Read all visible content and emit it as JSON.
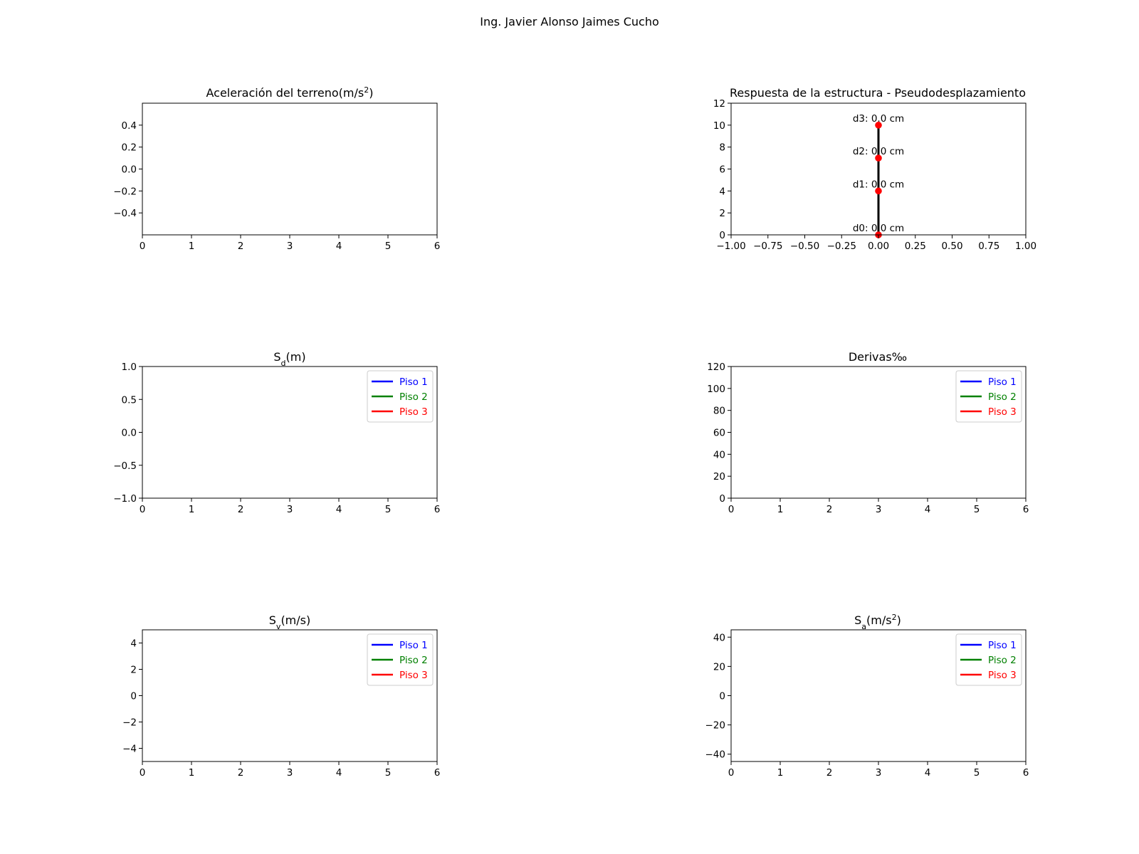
{
  "figure": {
    "suptitle": "Ing. Javier Alonso Jaimes Cucho"
  },
  "chart_data": [
    {
      "id": "acc",
      "type": "line",
      "title": "Aceleración del terreno(m/s",
      "title_sup": "2",
      "title_after": ")",
      "xlim": [
        0,
        6
      ],
      "ylim": [
        -0.6,
        0.6
      ],
      "xticks": [
        0,
        1,
        2,
        3,
        4,
        5,
        6
      ],
      "xtick_labels": [
        "0",
        "1",
        "2",
        "3",
        "4",
        "5",
        "6"
      ],
      "yticks": [
        -0.4,
        -0.2,
        0.0,
        0.2,
        0.4
      ],
      "ytick_labels": [
        "−0.4",
        "−0.2",
        "0.0",
        "0.2",
        "0.4"
      ],
      "series": []
    },
    {
      "id": "struct",
      "type": "line",
      "title": "Respuesta de la estructura - Pseudodesplazamiento",
      "xlim": [
        -1.0,
        1.0
      ],
      "ylim": [
        0,
        12
      ],
      "xticks": [
        -1.0,
        -0.75,
        -0.5,
        -0.25,
        0.0,
        0.25,
        0.5,
        0.75,
        1.0
      ],
      "xtick_labels": [
        "−1.00",
        "−0.75",
        "−0.50",
        "−0.25",
        "0.00",
        "0.25",
        "0.50",
        "0.75",
        "1.00"
      ],
      "yticks": [
        0,
        2,
        4,
        6,
        8,
        10,
        12
      ],
      "ytick_labels": [
        "0",
        "2",
        "4",
        "6",
        "8",
        "10",
        "12"
      ],
      "line_color": "#000000",
      "marker_color": "#ff0000",
      "points": [
        {
          "x": 0.0,
          "y": 0,
          "label": "d0: 0.0 cm"
        },
        {
          "x": 0.0,
          "y": 4,
          "label": "d1: 0.0 cm"
        },
        {
          "x": 0.0,
          "y": 7,
          "label": "d2: 0.0 cm"
        },
        {
          "x": 0.0,
          "y": 10,
          "label": "d3: 0.0 cm"
        }
      ]
    },
    {
      "id": "sd",
      "type": "line",
      "title": "S",
      "title_sub": "d",
      "title_after": "(m)",
      "xlim": [
        0,
        6
      ],
      "ylim": [
        -1.0,
        1.0
      ],
      "xticks": [
        0,
        1,
        2,
        3,
        4,
        5,
        6
      ],
      "xtick_labels": [
        "0",
        "1",
        "2",
        "3",
        "4",
        "5",
        "6"
      ],
      "yticks": [
        -1.0,
        -0.5,
        0.0,
        0.5,
        1.0
      ],
      "ytick_labels": [
        "−1.0",
        "−0.5",
        "0.0",
        "0.5",
        "1.0"
      ],
      "legend": [
        {
          "name": "Piso 1",
          "color": "#0000ff"
        },
        {
          "name": "Piso 2",
          "color": "#008000"
        },
        {
          "name": "Piso 3",
          "color": "#ff0000"
        }
      ]
    },
    {
      "id": "derivas",
      "type": "line",
      "title": "Derivas‰",
      "xlim": [
        0,
        6
      ],
      "ylim": [
        0,
        120
      ],
      "xticks": [
        0,
        1,
        2,
        3,
        4,
        5,
        6
      ],
      "xtick_labels": [
        "0",
        "1",
        "2",
        "3",
        "4",
        "5",
        "6"
      ],
      "yticks": [
        0,
        20,
        40,
        60,
        80,
        100,
        120
      ],
      "ytick_labels": [
        "0",
        "20",
        "40",
        "60",
        "80",
        "100",
        "120"
      ],
      "legend": [
        {
          "name": "Piso 1",
          "color": "#0000ff"
        },
        {
          "name": "Piso 2",
          "color": "#008000"
        },
        {
          "name": "Piso 3",
          "color": "#ff0000"
        }
      ]
    },
    {
      "id": "sv",
      "type": "line",
      "title": "S",
      "title_sub": "v",
      "title_after": "(m/s)",
      "xlim": [
        0,
        6
      ],
      "ylim": [
        -5,
        5
      ],
      "xticks": [
        0,
        1,
        2,
        3,
        4,
        5,
        6
      ],
      "xtick_labels": [
        "0",
        "1",
        "2",
        "3",
        "4",
        "5",
        "6"
      ],
      "yticks": [
        -4,
        -2,
        0,
        2,
        4
      ],
      "ytick_labels": [
        "−4",
        "−2",
        "0",
        "2",
        "4"
      ],
      "legend": [
        {
          "name": "Piso 1",
          "color": "#0000ff"
        },
        {
          "name": "Piso 2",
          "color": "#008000"
        },
        {
          "name": "Piso 3",
          "color": "#ff0000"
        }
      ]
    },
    {
      "id": "sa",
      "type": "line",
      "title": "S",
      "title_sub": "a",
      "title_after": "(m/s",
      "title_sup": "2",
      "title_end": ")",
      "xlim": [
        0,
        6
      ],
      "ylim": [
        -45,
        45
      ],
      "xticks": [
        0,
        1,
        2,
        3,
        4,
        5,
        6
      ],
      "xtick_labels": [
        "0",
        "1",
        "2",
        "3",
        "4",
        "5",
        "6"
      ],
      "yticks": [
        -40,
        -20,
        0,
        20,
        40
      ],
      "ytick_labels": [
        "−40",
        "−20",
        "0",
        "20",
        "40"
      ],
      "legend": [
        {
          "name": "Piso 1",
          "color": "#0000ff"
        },
        {
          "name": "Piso 2",
          "color": "#008000"
        },
        {
          "name": "Piso 3",
          "color": "#ff0000"
        }
      ]
    }
  ]
}
